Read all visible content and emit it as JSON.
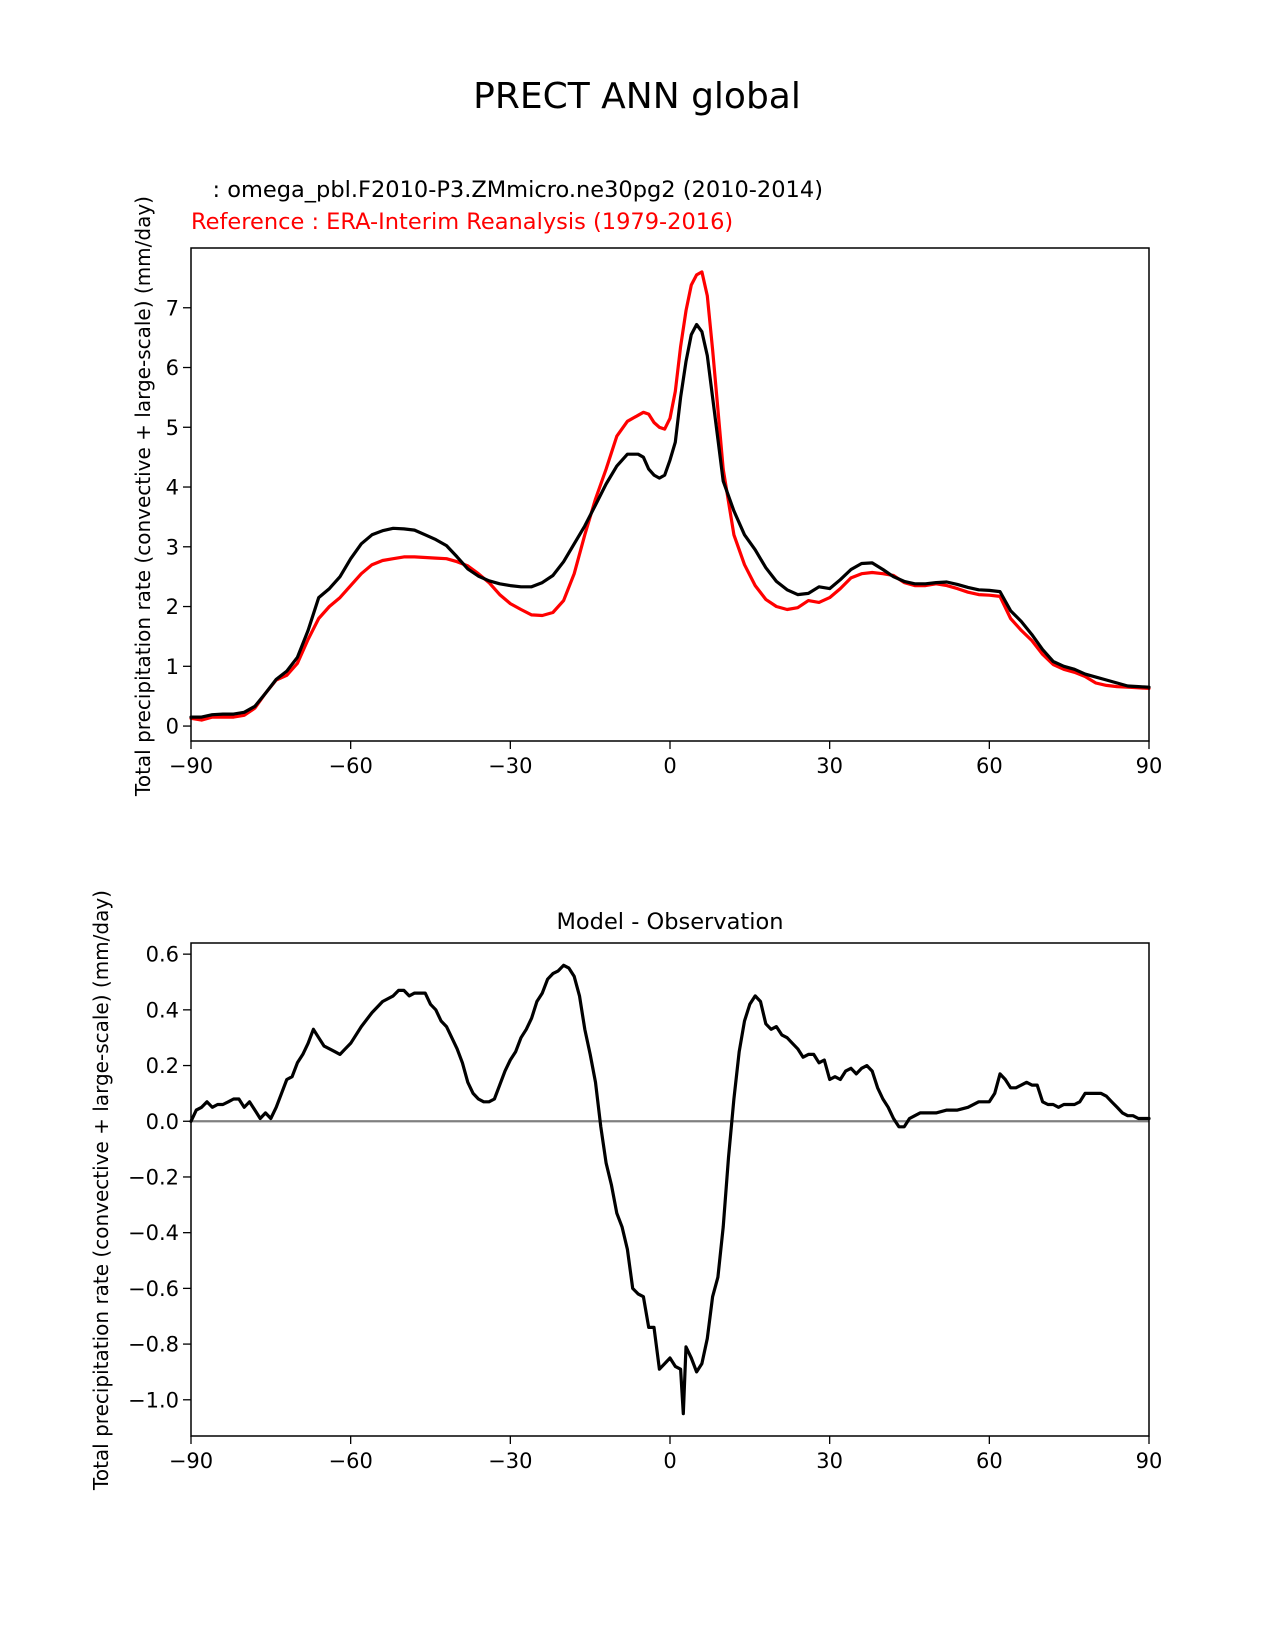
{
  "figure_title": "PRECT ANN global",
  "colors": {
    "model": "#000000",
    "reference": "#ff0000",
    "zero_line": "#808080",
    "frame": "#000000"
  },
  "chart_data": [
    {
      "type": "line",
      "name": "zonal-mean",
      "test_label": "   : omega_pbl.F2010-P3.ZMmicro.ne30pg2 (2010-2014)",
      "ref_label": "Reference : ERA-Interim Reanalysis (1979-2016)",
      "ylabel": "Total precipitation rate (convective + large-scale) (mm/day)",
      "xlabel": "",
      "xlim": [
        -90,
        90
      ],
      "ylim": [
        -0.25,
        8.0
      ],
      "xticks": [
        -90,
        -60,
        -30,
        0,
        30,
        60,
        90
      ],
      "xticklabels": [
        "−90",
        "−60",
        "−30",
        "0",
        "30",
        "60",
        "90"
      ],
      "yticks": [
        0,
        1,
        2,
        3,
        4,
        5,
        6,
        7
      ],
      "yticklabels": [
        "0",
        "1",
        "2",
        "3",
        "4",
        "5",
        "6",
        "7"
      ],
      "x": [
        -90,
        -88,
        -86,
        -84,
        -82,
        -80,
        -78,
        -76,
        -74,
        -72,
        -70,
        -68,
        -66,
        -64,
        -62,
        -60,
        -58,
        -56,
        -54,
        -52,
        -50,
        -48,
        -46,
        -44,
        -42,
        -40,
        -38,
        -36,
        -34,
        -32,
        -30,
        -28,
        -26,
        -24,
        -22,
        -20,
        -18,
        -16,
        -14,
        -12,
        -10,
        -8,
        -6,
        -5,
        -4,
        -3,
        -2,
        -1,
        0,
        1,
        2,
        3,
        4,
        5,
        6,
        7,
        8,
        9,
        10,
        12,
        14,
        16,
        18,
        20,
        22,
        24,
        26,
        28,
        30,
        32,
        34,
        36,
        38,
        40,
        42,
        44,
        46,
        48,
        50,
        52,
        54,
        56,
        58,
        60,
        62,
        64,
        66,
        68,
        70,
        72,
        74,
        76,
        78,
        80,
        82,
        84,
        86,
        88,
        90
      ],
      "series": [
        {
          "name": "test",
          "color": "#000000",
          "values": [
            0.15,
            0.15,
            0.19,
            0.2,
            0.2,
            0.23,
            0.33,
            0.55,
            0.78,
            0.92,
            1.15,
            1.6,
            2.15,
            2.3,
            2.5,
            2.8,
            3.05,
            3.2,
            3.27,
            3.31,
            3.3,
            3.28,
            3.2,
            3.12,
            3.02,
            2.83,
            2.63,
            2.51,
            2.43,
            2.38,
            2.35,
            2.33,
            2.33,
            2.4,
            2.52,
            2.75,
            3.05,
            3.35,
            3.7,
            4.05,
            4.35,
            4.55,
            4.55,
            4.5,
            4.3,
            4.2,
            4.15,
            4.2,
            4.45,
            4.75,
            5.5,
            6.1,
            6.55,
            6.72,
            6.6,
            6.2,
            5.5,
            4.8,
            4.1,
            3.6,
            3.2,
            2.95,
            2.65,
            2.42,
            2.28,
            2.2,
            2.22,
            2.33,
            2.3,
            2.45,
            2.62,
            2.72,
            2.73,
            2.62,
            2.5,
            2.42,
            2.38,
            2.38,
            2.4,
            2.41,
            2.37,
            2.32,
            2.28,
            2.27,
            2.25,
            1.93,
            1.75,
            1.53,
            1.28,
            1.08,
            1.0,
            0.95,
            0.87,
            0.82,
            0.77,
            0.72,
            0.67,
            0.66,
            0.65
          ]
        },
        {
          "name": "reference",
          "color": "#ff0000",
          "values": [
            0.13,
            0.1,
            0.15,
            0.15,
            0.15,
            0.18,
            0.3,
            0.55,
            0.77,
            0.85,
            1.05,
            1.45,
            1.8,
            2.0,
            2.15,
            2.35,
            2.55,
            2.7,
            2.77,
            2.8,
            2.83,
            2.83,
            2.82,
            2.81,
            2.8,
            2.75,
            2.68,
            2.55,
            2.4,
            2.2,
            2.05,
            1.95,
            1.86,
            1.85,
            1.9,
            2.1,
            2.55,
            3.2,
            3.8,
            4.3,
            4.85,
            5.1,
            5.2,
            5.25,
            5.22,
            5.08,
            5.0,
            4.97,
            5.15,
            5.6,
            6.35,
            6.95,
            7.38,
            7.55,
            7.6,
            7.2,
            6.3,
            5.3,
            4.3,
            3.2,
            2.7,
            2.35,
            2.12,
            2.0,
            1.95,
            1.98,
            2.1,
            2.07,
            2.15,
            2.3,
            2.48,
            2.55,
            2.57,
            2.55,
            2.52,
            2.4,
            2.35,
            2.35,
            2.38,
            2.35,
            2.3,
            2.24,
            2.2,
            2.19,
            2.17,
            1.8,
            1.6,
            1.43,
            1.2,
            1.03,
            0.95,
            0.9,
            0.83,
            0.72,
            0.68,
            0.66,
            0.65,
            0.64,
            0.63
          ]
        }
      ]
    },
    {
      "type": "line",
      "name": "difference",
      "title": "Model - Observation",
      "ylabel": "Total precipitation rate (convective + large-scale) (mm/day)",
      "xlabel": "",
      "xlim": [
        -90,
        90
      ],
      "ylim": [
        -1.13,
        0.64
      ],
      "xticks": [
        -90,
        -60,
        -30,
        0,
        30,
        60,
        90
      ],
      "xticklabels": [
        "−90",
        "−60",
        "−30",
        "0",
        "30",
        "60",
        "90"
      ],
      "yticks": [
        0.6,
        0.4,
        0.2,
        0.0,
        -0.2,
        -0.4,
        -0.6,
        -0.8,
        -1.0
      ],
      "yticklabels": [
        "0.6",
        "0.4",
        "0.2",
        "0.0",
        "−0.2",
        "−0.4",
        "−0.6",
        "−0.8",
        "−1.0"
      ],
      "zero_line": 0,
      "x": [
        -90,
        -89,
        -88,
        -87,
        -86,
        -85,
        -84,
        -83,
        -82,
        -81,
        -80,
        -79,
        -78,
        -77,
        -76,
        -75,
        -74,
        -73,
        -72,
        -71,
        -70,
        -69,
        -68,
        -67,
        -66,
        -65,
        -64,
        -63,
        -62,
        -61,
        -60,
        -58,
        -56,
        -54,
        -52,
        -51,
        -50,
        -49,
        -48,
        -47,
        -46,
        -45,
        -44,
        -43,
        -42,
        -41,
        -40,
        -39,
        -38,
        -37,
        -36,
        -35,
        -34,
        -33,
        -32,
        -31,
        -30,
        -29,
        -28,
        -27,
        -26,
        -25,
        -24,
        -23,
        -22,
        -21,
        -20,
        -19,
        -18,
        -17,
        -16,
        -15,
        -14,
        -13,
        -12,
        -11,
        -10,
        -9,
        -8,
        -7,
        -6,
        -5,
        -4,
        -3,
        -2,
        -1,
        0,
        1,
        2,
        2.5,
        3,
        4,
        5,
        6,
        7,
        8,
        9,
        10,
        11,
        12,
        13,
        14,
        15,
        16,
        17,
        18,
        19,
        20,
        21,
        22,
        23,
        24,
        25,
        26,
        27,
        28,
        29,
        30,
        31,
        32,
        33,
        34,
        35,
        36,
        37,
        38,
        39,
        40,
        41,
        42,
        43,
        44,
        45,
        46,
        47,
        48,
        50,
        52,
        54,
        56,
        58,
        60,
        61,
        62,
        63,
        64,
        65,
        66,
        67,
        68,
        69,
        70,
        71,
        72,
        73,
        74,
        75,
        76,
        77,
        78,
        79,
        80,
        81,
        82,
        83,
        84,
        85,
        86,
        87,
        88,
        89,
        90
      ],
      "series": [
        {
          "name": "difference",
          "color": "#000000",
          "values": [
            0.0,
            0.04,
            0.05,
            0.07,
            0.05,
            0.06,
            0.06,
            0.07,
            0.08,
            0.08,
            0.05,
            0.07,
            0.04,
            0.01,
            0.03,
            0.01,
            0.05,
            0.1,
            0.15,
            0.16,
            0.21,
            0.24,
            0.28,
            0.33,
            0.3,
            0.27,
            0.26,
            0.25,
            0.24,
            0.26,
            0.28,
            0.34,
            0.39,
            0.43,
            0.45,
            0.47,
            0.47,
            0.45,
            0.46,
            0.46,
            0.46,
            0.42,
            0.4,
            0.36,
            0.34,
            0.3,
            0.26,
            0.21,
            0.14,
            0.1,
            0.08,
            0.07,
            0.07,
            0.08,
            0.13,
            0.18,
            0.22,
            0.25,
            0.3,
            0.33,
            0.37,
            0.43,
            0.46,
            0.51,
            0.53,
            0.54,
            0.56,
            0.55,
            0.52,
            0.45,
            0.33,
            0.24,
            0.14,
            -0.02,
            -0.15,
            -0.23,
            -0.33,
            -0.38,
            -0.46,
            -0.6,
            -0.62,
            -0.63,
            -0.74,
            -0.74,
            -0.89,
            -0.87,
            -0.85,
            -0.88,
            -0.89,
            -1.05,
            -0.81,
            -0.85,
            -0.9,
            -0.87,
            -0.78,
            -0.63,
            -0.56,
            -0.38,
            -0.13,
            0.08,
            0.25,
            0.36,
            0.42,
            0.45,
            0.43,
            0.35,
            0.33,
            0.34,
            0.31,
            0.3,
            0.28,
            0.26,
            0.23,
            0.24,
            0.24,
            0.21,
            0.22,
            0.15,
            0.16,
            0.15,
            0.18,
            0.19,
            0.17,
            0.19,
            0.2,
            0.18,
            0.12,
            0.08,
            0.05,
            0.01,
            -0.02,
            -0.02,
            0.01,
            0.02,
            0.03,
            0.03,
            0.03,
            0.04,
            0.04,
            0.05,
            0.07,
            0.07,
            0.1,
            0.17,
            0.15,
            0.12,
            0.12,
            0.13,
            0.14,
            0.13,
            0.13,
            0.07,
            0.06,
            0.06,
            0.05,
            0.06,
            0.06,
            0.06,
            0.07,
            0.1,
            0.1,
            0.1,
            0.1,
            0.09,
            0.07,
            0.05,
            0.03,
            0.02,
            0.02,
            0.01,
            0.01,
            0.01
          ]
        }
      ]
    }
  ]
}
